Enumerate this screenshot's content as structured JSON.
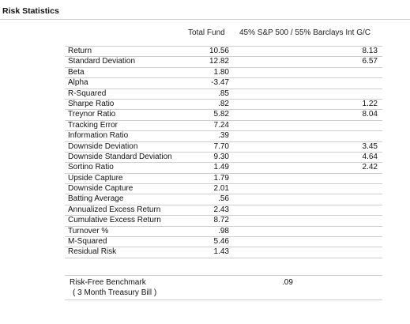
{
  "title": "Risk Statistics",
  "columns": {
    "fund": "Total Fund",
    "benchmark": "45% S&P 500 / 55% Barclays Int G/C"
  },
  "rows": [
    {
      "label": "Return",
      "fund": "10.56",
      "benchmark": "8.13"
    },
    {
      "label": "Standard Deviation",
      "fund": "12.82",
      "benchmark": "6.57"
    },
    {
      "label": "Beta",
      "fund": "1.80",
      "benchmark": ""
    },
    {
      "label": "Alpha",
      "fund": "-3.47",
      "benchmark": ""
    },
    {
      "label": "R-Squared",
      "fund": ".85",
      "benchmark": ""
    },
    {
      "label": "Sharpe Ratio",
      "fund": ".82",
      "benchmark": "1.22"
    },
    {
      "label": "Treynor Ratio",
      "fund": "5.82",
      "benchmark": "8.04"
    },
    {
      "label": "Tracking Error",
      "fund": "7.24",
      "benchmark": ""
    },
    {
      "label": "Information Ratio",
      "fund": ".39",
      "benchmark": ""
    },
    {
      "label": "Downside Deviation",
      "fund": "7.70",
      "benchmark": "3.45"
    },
    {
      "label": "Downside Standard Deviation",
      "fund": "9.30",
      "benchmark": "4.64"
    },
    {
      "label": "Sortino Ratio",
      "fund": "1.49",
      "benchmark": "2.42"
    },
    {
      "label": "Upside Capture",
      "fund": "1.79",
      "benchmark": ""
    },
    {
      "label": "Downside Capture",
      "fund": "2.01",
      "benchmark": ""
    },
    {
      "label": "Batting Average",
      "fund": ".56",
      "benchmark": ""
    },
    {
      "label": "Annualized Excess Return",
      "fund": "2.43",
      "benchmark": ""
    },
    {
      "label": "Cumulative Excess Return",
      "fund": "8.72",
      "benchmark": ""
    },
    {
      "label": "Turnover %",
      "fund": ".98",
      "benchmark": ""
    },
    {
      "label": "M-Squared",
      "fund": "5.46",
      "benchmark": ""
    },
    {
      "label": "Residual Risk",
      "fund": "1.43",
      "benchmark": ""
    }
  ],
  "risk_free": {
    "label": "Risk-Free Benchmark",
    "sublabel": "( 3 Month Treasury Bill )",
    "value": ".09"
  }
}
